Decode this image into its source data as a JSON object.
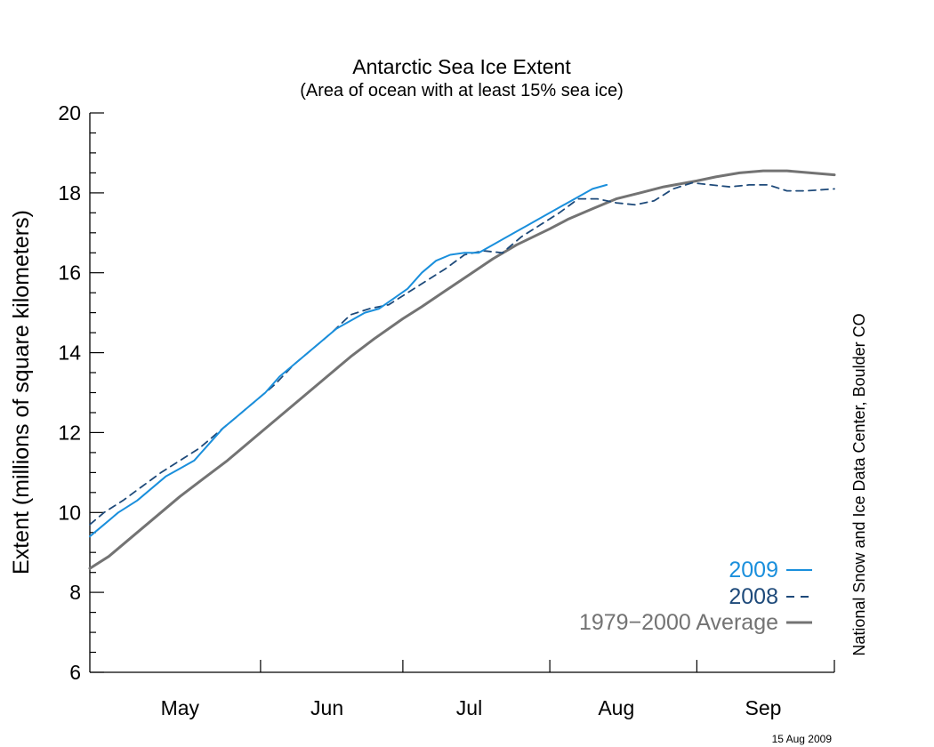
{
  "chart_data": {
    "type": "line",
    "title": "Antarctic Sea Ice Extent",
    "subtitle": "(Area of ocean with at least 15% sea ice)",
    "ylabel": "Extent (millions of square kilometers)",
    "xlabel": "",
    "ylim": [
      6,
      20
    ],
    "yticks": [
      6,
      8,
      10,
      12,
      14,
      16,
      18,
      20
    ],
    "yticks_minor_step": 0.5,
    "xlim": [
      "2009-04-26",
      "2009-09-30"
    ],
    "month_labels": [
      {
        "label": "May",
        "date": "2009-05-15"
      },
      {
        "label": "Jun",
        "date": "2009-06-15"
      },
      {
        "label": "Jul",
        "date": "2009-07-15"
      },
      {
        "label": "Aug",
        "date": "2009-08-15"
      },
      {
        "label": "Sep",
        "date": "2009-09-15"
      }
    ],
    "month_boundaries": [
      "2009-06-01",
      "2009-07-01",
      "2009-08-01",
      "2009-09-01",
      "2009-09-30"
    ],
    "grid": false,
    "legend_position": "bottom-right",
    "credit": "National Snow and Ice Data Center, Boulder CO",
    "date_stamp": "15 Aug 2009",
    "series": [
      {
        "name": "2009",
        "legend_label": "2009",
        "color": "#1a8fdc",
        "dash": "solid",
        "x": [
          "2009-04-26",
          "2009-04-29",
          "2009-05-02",
          "2009-05-06",
          "2009-05-09",
          "2009-05-12",
          "2009-05-15",
          "2009-05-18",
          "2009-05-21",
          "2009-05-24",
          "2009-05-27",
          "2009-05-30",
          "2009-06-02",
          "2009-06-05",
          "2009-06-08",
          "2009-06-11",
          "2009-06-14",
          "2009-06-17",
          "2009-06-20",
          "2009-06-23",
          "2009-06-26",
          "2009-06-29",
          "2009-07-02",
          "2009-07-05",
          "2009-07-08",
          "2009-07-11",
          "2009-07-14",
          "2009-07-17",
          "2009-07-20",
          "2009-07-23",
          "2009-07-26",
          "2009-07-29",
          "2009-08-01",
          "2009-08-04",
          "2009-08-07",
          "2009-08-10",
          "2009-08-13"
        ],
        "y": [
          9.4,
          9.7,
          10.0,
          10.3,
          10.6,
          10.9,
          11.1,
          11.3,
          11.7,
          12.1,
          12.4,
          12.7,
          13.0,
          13.4,
          13.7,
          14.0,
          14.3,
          14.6,
          14.8,
          15.0,
          15.1,
          15.35,
          15.6,
          16.0,
          16.3,
          16.45,
          16.5,
          16.5,
          16.7,
          16.9,
          17.1,
          17.3,
          17.5,
          17.7,
          17.9,
          18.1,
          18.2
        ]
      },
      {
        "name": "2008",
        "legend_label": "2008",
        "color": "#1e4a7a",
        "dash": "dashed",
        "x": [
          "2009-04-26",
          "2009-04-29",
          "2009-05-03",
          "2009-05-07",
          "2009-05-11",
          "2009-05-15",
          "2009-05-19",
          "2009-05-23",
          "2009-05-27",
          "2009-05-31",
          "2009-06-04",
          "2009-06-08",
          "2009-06-12",
          "2009-06-16",
          "2009-06-20",
          "2009-06-24",
          "2009-06-28",
          "2009-07-02",
          "2009-07-06",
          "2009-07-10",
          "2009-07-14",
          "2009-07-18",
          "2009-07-22",
          "2009-07-26",
          "2009-07-30",
          "2009-08-03",
          "2009-08-07",
          "2009-08-11",
          "2009-08-15",
          "2009-08-19",
          "2009-08-23",
          "2009-08-27",
          "2009-08-31",
          "2009-09-04",
          "2009-09-08",
          "2009-09-12",
          "2009-09-16",
          "2009-09-20",
          "2009-09-24",
          "2009-09-30"
        ],
        "y": [
          9.7,
          10.0,
          10.3,
          10.65,
          11.0,
          11.3,
          11.6,
          12.0,
          12.4,
          12.8,
          13.2,
          13.7,
          14.1,
          14.5,
          14.95,
          15.1,
          15.2,
          15.5,
          15.8,
          16.1,
          16.45,
          16.55,
          16.5,
          16.9,
          17.2,
          17.5,
          17.85,
          17.85,
          17.75,
          17.7,
          17.8,
          18.1,
          18.25,
          18.2,
          18.15,
          18.2,
          18.2,
          18.05,
          18.05,
          18.1
        ]
      },
      {
        "name": "1979−2000 Average",
        "legend_label": "1979−2000 Average",
        "color": "#737373",
        "dash": "solid",
        "x": [
          "2009-04-26",
          "2009-04-30",
          "2009-05-05",
          "2009-05-10",
          "2009-05-15",
          "2009-05-20",
          "2009-05-25",
          "2009-05-31",
          "2009-06-05",
          "2009-06-10",
          "2009-06-15",
          "2009-06-20",
          "2009-06-25",
          "2009-07-01",
          "2009-07-05",
          "2009-07-10",
          "2009-07-15",
          "2009-07-20",
          "2009-07-25",
          "2009-08-01",
          "2009-08-05",
          "2009-08-10",
          "2009-08-15",
          "2009-08-20",
          "2009-08-25",
          "2009-09-01",
          "2009-09-05",
          "2009-09-10",
          "2009-09-15",
          "2009-09-20",
          "2009-09-25",
          "2009-09-30"
        ],
        "y": [
          8.6,
          8.9,
          9.4,
          9.9,
          10.4,
          10.85,
          11.3,
          11.9,
          12.4,
          12.9,
          13.4,
          13.9,
          14.35,
          14.85,
          15.15,
          15.55,
          15.95,
          16.35,
          16.7,
          17.1,
          17.35,
          17.6,
          17.85,
          18.0,
          18.15,
          18.3,
          18.4,
          18.5,
          18.55,
          18.55,
          18.5,
          18.45
        ]
      }
    ]
  }
}
